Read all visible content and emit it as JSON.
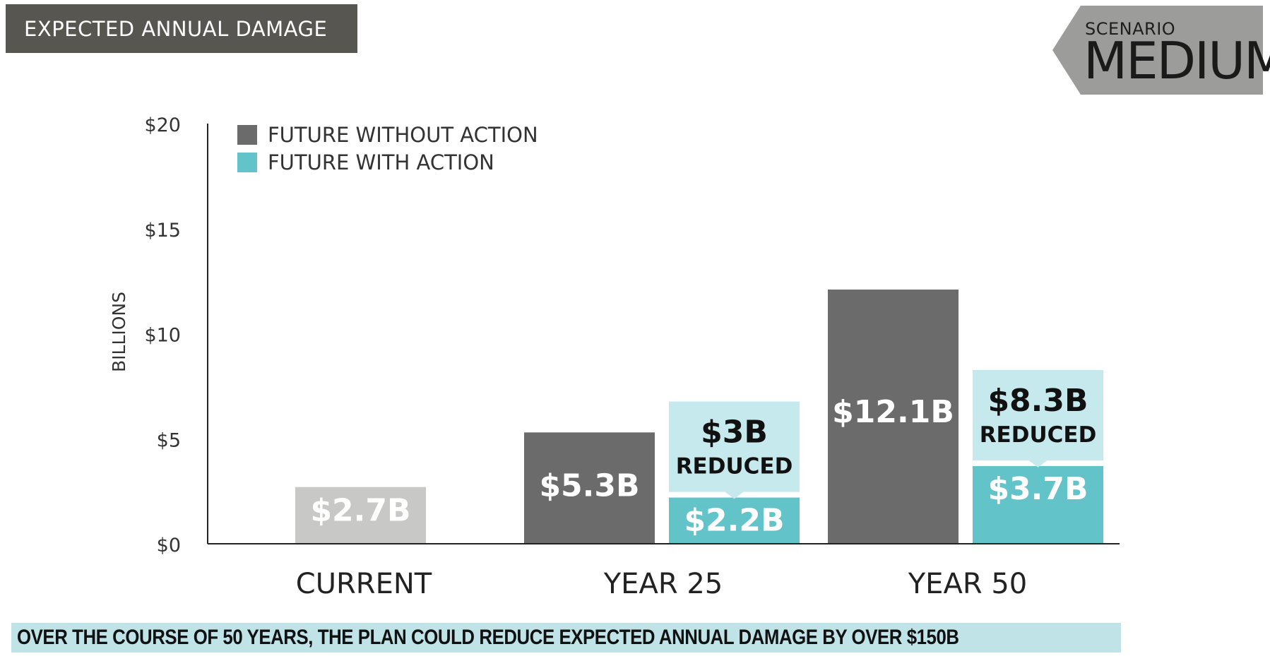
{
  "header": {
    "title": "EXPECTED ANNUAL DAMAGE"
  },
  "scenario": {
    "label": "SCENARIO",
    "value": "MEDIUM"
  },
  "footer": {
    "text": "OVER THE COURSE OF 50 YEARS, THE PLAN COULD REDUCE EXPECTED ANNUAL DAMAGE BY OVER $150B"
  },
  "colors": {
    "without_action": "#6b6b6b",
    "with_action": "#62c3c9",
    "current": "#c8c8c6",
    "callout": "#c5e9ec",
    "header_bg": "#575650",
    "footer_bg": "#bfe3e6"
  },
  "chart_data": {
    "type": "bar",
    "title": "",
    "xlabel": "",
    "ylabel": "BILLIONS",
    "ylim": [
      0,
      20
    ],
    "yticks": [
      0,
      5,
      10,
      15,
      20
    ],
    "ytick_labels": [
      "$0",
      "$5",
      "$10",
      "$15",
      "$20"
    ],
    "categories": [
      "CURRENT",
      "YEAR 25",
      "YEAR 50"
    ],
    "legend": {
      "position": "top-left",
      "entries": [
        "FUTURE WITHOUT ACTION",
        "FUTURE WITH ACTION"
      ]
    },
    "series": [
      {
        "name": "FUTURE WITHOUT ACTION",
        "values": [
          2.7,
          5.3,
          12.1
        ],
        "labels": [
          "$2.7B",
          "$5.3B",
          "$12.1B"
        ]
      },
      {
        "name": "FUTURE WITH ACTION",
        "values": [
          null,
          2.2,
          3.7
        ],
        "labels": [
          "",
          "$2.2B",
          "$3.7B"
        ]
      }
    ],
    "reductions": [
      {
        "category": "YEAR 25",
        "amount": "$3B",
        "text": "REDUCED"
      },
      {
        "category": "YEAR 50",
        "amount": "$8.3B",
        "text": "REDUCED"
      }
    ]
  }
}
